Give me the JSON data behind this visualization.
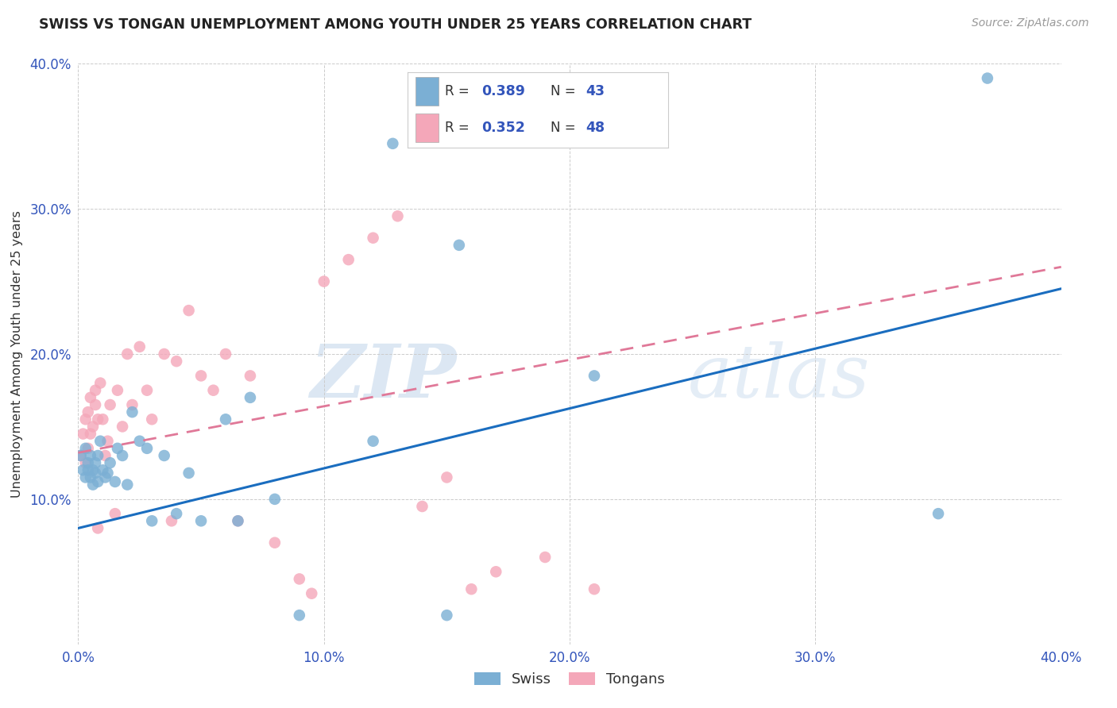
{
  "title": "SWISS VS TONGAN UNEMPLOYMENT AMONG YOUTH UNDER 25 YEARS CORRELATION CHART",
  "source": "Source: ZipAtlas.com",
  "ylabel": "Unemployment Among Youth under 25 years",
  "xlim": [
    0,
    0.4
  ],
  "ylim": [
    0,
    0.4
  ],
  "xticks": [
    0.0,
    0.1,
    0.2,
    0.3,
    0.4
  ],
  "yticks": [
    0.0,
    0.1,
    0.2,
    0.3,
    0.4
  ],
  "xticklabels": [
    "0.0%",
    "10.0%",
    "20.0%",
    "30.0%",
    "40.0%"
  ],
  "yticklabels": [
    "",
    "10.0%",
    "20.0%",
    "30.0%",
    "40.0%"
  ],
  "swiss_color": "#7bafd4",
  "tongan_color": "#f4a7b9",
  "swiss_line_color": "#1a6dbf",
  "tongan_line_color": "#e07898",
  "swiss_R": 0.389,
  "swiss_N": 43,
  "tongan_R": 0.352,
  "tongan_N": 48,
  "background_color": "#ffffff",
  "grid_color": "#cccccc",
  "watermark_zip": "ZIP",
  "watermark_atlas": "atlas",
  "swiss_line_start_y": 0.08,
  "swiss_line_end_y": 0.245,
  "tongan_line_start_y": 0.132,
  "tongan_line_end_y": 0.26,
  "swiss_x": [
    0.001,
    0.002,
    0.003,
    0.003,
    0.004,
    0.004,
    0.005,
    0.005,
    0.006,
    0.006,
    0.007,
    0.007,
    0.008,
    0.008,
    0.009,
    0.01,
    0.011,
    0.012,
    0.013,
    0.015,
    0.016,
    0.018,
    0.02,
    0.022,
    0.025,
    0.028,
    0.03,
    0.035,
    0.04,
    0.045,
    0.05,
    0.06,
    0.065,
    0.07,
    0.08,
    0.09,
    0.12,
    0.128,
    0.15,
    0.155,
    0.21,
    0.35,
    0.37
  ],
  "swiss_y": [
    0.13,
    0.12,
    0.135,
    0.115,
    0.125,
    0.12,
    0.13,
    0.115,
    0.12,
    0.11,
    0.125,
    0.118,
    0.13,
    0.112,
    0.14,
    0.12,
    0.115,
    0.118,
    0.125,
    0.112,
    0.135,
    0.13,
    0.11,
    0.16,
    0.14,
    0.135,
    0.085,
    0.13,
    0.09,
    0.118,
    0.085,
    0.155,
    0.085,
    0.17,
    0.1,
    0.02,
    0.14,
    0.345,
    0.02,
    0.275,
    0.185,
    0.09,
    0.39
  ],
  "tongan_x": [
    0.001,
    0.002,
    0.003,
    0.003,
    0.004,
    0.004,
    0.005,
    0.005,
    0.006,
    0.007,
    0.007,
    0.008,
    0.008,
    0.009,
    0.01,
    0.011,
    0.012,
    0.013,
    0.015,
    0.016,
    0.018,
    0.02,
    0.022,
    0.025,
    0.028,
    0.03,
    0.035,
    0.038,
    0.04,
    0.045,
    0.05,
    0.055,
    0.06,
    0.065,
    0.07,
    0.08,
    0.09,
    0.095,
    0.1,
    0.11,
    0.12,
    0.13,
    0.14,
    0.15,
    0.16,
    0.17,
    0.19,
    0.21
  ],
  "tongan_y": [
    0.13,
    0.145,
    0.155,
    0.125,
    0.16,
    0.135,
    0.17,
    0.145,
    0.15,
    0.175,
    0.165,
    0.155,
    0.08,
    0.18,
    0.155,
    0.13,
    0.14,
    0.165,
    0.09,
    0.175,
    0.15,
    0.2,
    0.165,
    0.205,
    0.175,
    0.155,
    0.2,
    0.085,
    0.195,
    0.23,
    0.185,
    0.175,
    0.2,
    0.085,
    0.185,
    0.07,
    0.045,
    0.035,
    0.25,
    0.265,
    0.28,
    0.295,
    0.095,
    0.115,
    0.038,
    0.05,
    0.06,
    0.038
  ]
}
